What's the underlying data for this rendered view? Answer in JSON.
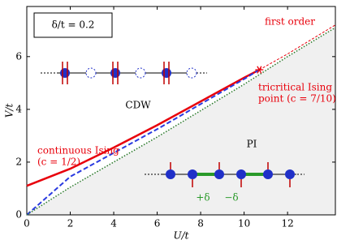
{
  "chart_data": {
    "type": "line",
    "xlabel": "U/t",
    "ylabel": "V/t",
    "xlim": [
      0,
      14.2
    ],
    "ylim": [
      0,
      7.9
    ],
    "xticks": [
      0,
      2,
      4,
      6,
      8,
      10,
      12
    ],
    "yticks": [
      0,
      2,
      4,
      6
    ],
    "grid": false,
    "shade_color": "#f0f0f0",
    "series": [
      {
        "name": "continuous Ising",
        "color": "#e8000b",
        "style": "solid",
        "x": [
          0,
          2,
          4,
          6,
          8,
          10,
          10.7
        ],
        "values": [
          1.1,
          1.75,
          2.55,
          3.4,
          4.3,
          5.2,
          5.5
        ]
      },
      {
        "name": "first order",
        "color": "#e8000b",
        "style": "dashed-fine",
        "x": [
          10.7,
          12,
          14.2
        ],
        "values": [
          5.5,
          6.1,
          7.2
        ]
      },
      {
        "name": "",
        "color": "#2a3ae0",
        "style": "dashed",
        "x": [
          0,
          2,
          4,
          6,
          8,
          10,
          10.7
        ],
        "values": [
          0,
          1.45,
          2.35,
          3.25,
          4.2,
          5.15,
          5.5
        ]
      },
      {
        "name": "",
        "color": "#2a7a2a",
        "style": "dotted",
        "x": [
          0,
          2,
          4,
          6,
          8,
          10,
          12,
          14.2
        ],
        "values": [
          0,
          1.05,
          2.0,
          2.95,
          3.95,
          4.95,
          6.0,
          7.1
        ]
      }
    ],
    "tricritical_point": {
      "x": 10.7,
      "y": 5.5
    },
    "annotations": [
      "δ/t = 0.2",
      "CDW",
      "PI",
      "continuous Ising",
      "(c = 1/2)",
      "tricritical Ising",
      "point (c = 7/10)",
      "first order",
      "+δ",
      "−δ"
    ]
  }
}
